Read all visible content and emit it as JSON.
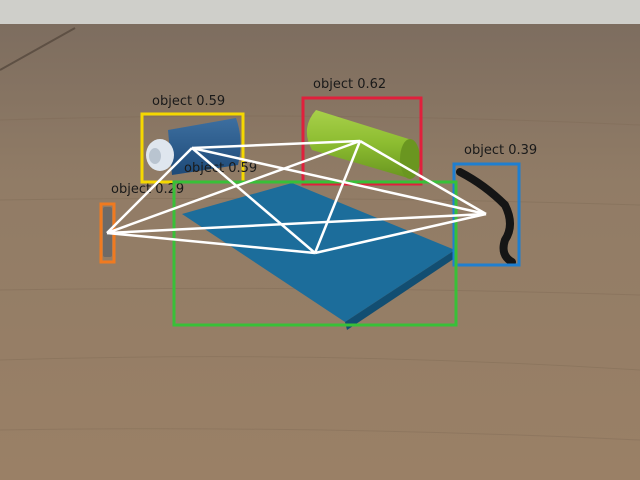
{
  "image": {
    "description_free": true,
    "label_color": "#1a1a1a",
    "edge_color": "#ffffff"
  },
  "detections": [
    {
      "label": "object 0.59",
      "color": "#f5d800"
    },
    {
      "label": "object 0.62",
      "color": "#e0203c"
    },
    {
      "label": "object 0.39",
      "color": "#1f7fd0"
    },
    {
      "label": "object 0.29",
      "color": "#f07a20"
    },
    {
      "label": "object 0.59",
      "color": "#38c038"
    }
  ]
}
